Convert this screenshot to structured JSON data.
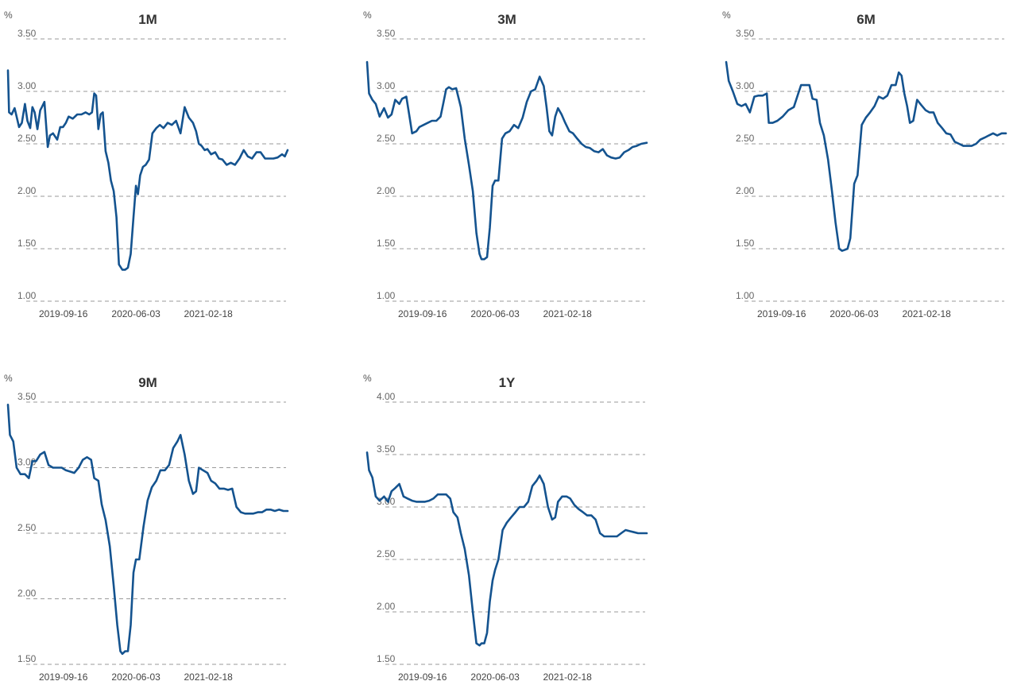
{
  "chart_data": [
    {
      "type": "line",
      "title": "1M",
      "unit": "%",
      "ylim": [
        1.0,
        3.5
      ],
      "yticks": [
        "1.00",
        "1.50",
        "2.00",
        "2.50",
        "3.00",
        "3.50"
      ],
      "xtick_labels": [
        "2019-09-16",
        "2020-06-03",
        "2021-02-18"
      ],
      "grid": "horizontal dashed",
      "color": "#14538f",
      "series": [
        {
          "x": [
            "2019-03-01",
            "2019-03-05",
            "2019-03-14",
            "2019-03-25",
            "2019-04-10",
            "2019-04-20",
            "2019-05-01",
            "2019-05-10",
            "2019-05-20",
            "2019-05-28",
            "2019-06-05",
            "2019-06-15",
            "2019-06-25",
            "2019-07-01",
            "2019-07-10",
            "2019-07-22",
            "2019-07-30",
            "2019-08-10",
            "2019-08-25",
            "2019-09-05",
            "2019-09-15",
            "2019-09-25",
            "2019-10-05",
            "2019-10-20",
            "2019-11-05",
            "2019-11-20",
            "2019-12-05",
            "2019-12-18",
            "2019-12-28",
            "2020-01-05",
            "2020-01-12",
            "2020-01-20",
            "2020-01-28",
            "2020-02-05",
            "2020-02-15",
            "2020-02-25",
            "2020-03-05",
            "2020-03-15",
            "2020-03-25",
            "2020-04-03",
            "2020-04-15",
            "2020-04-25",
            "2020-05-05",
            "2020-05-15",
            "2020-05-25",
            "2020-06-03",
            "2020-06-10",
            "2020-06-18",
            "2020-06-28",
            "2020-07-08",
            "2020-07-20",
            "2020-08-01",
            "2020-08-15",
            "2020-08-28",
            "2020-09-10",
            "2020-09-25",
            "2020-10-10",
            "2020-10-25",
            "2020-11-10",
            "2020-11-25",
            "2020-12-10",
            "2020-12-25",
            "2021-01-05",
            "2021-01-15",
            "2021-01-25",
            "2021-02-05",
            "2021-02-15",
            "2021-02-28",
            "2021-03-15",
            "2021-03-28",
            "2021-04-10",
            "2021-04-25",
            "2021-05-10",
            "2021-05-25",
            "2021-06-10",
            "2021-06-25",
            "2021-07-10",
            "2021-07-25",
            "2021-08-10",
            "2021-08-25",
            "2021-09-10",
            "2021-09-25",
            "2021-10-10",
            "2021-10-25",
            "2021-11-10",
            "2021-11-20",
            "2021-11-30"
          ],
          "values": [
            3.2,
            2.8,
            2.78,
            2.84,
            2.66,
            2.7,
            2.88,
            2.72,
            2.65,
            2.85,
            2.8,
            2.64,
            2.82,
            2.85,
            2.9,
            2.47,
            2.58,
            2.6,
            2.54,
            2.66,
            2.66,
            2.7,
            2.76,
            2.74,
            2.78,
            2.78,
            2.8,
            2.78,
            2.8,
            2.98,
            2.96,
            2.64,
            2.78,
            2.8,
            2.43,
            2.32,
            2.15,
            2.05,
            1.8,
            1.35,
            1.3,
            1.3,
            1.32,
            1.45,
            1.8,
            2.1,
            2.02,
            2.2,
            2.28,
            2.3,
            2.35,
            2.6,
            2.65,
            2.68,
            2.65,
            2.7,
            2.68,
            2.72,
            2.6,
            2.85,
            2.75,
            2.7,
            2.62,
            2.5,
            2.48,
            2.44,
            2.45,
            2.4,
            2.42,
            2.36,
            2.35,
            2.3,
            2.32,
            2.3,
            2.36,
            2.44,
            2.38,
            2.36,
            2.42,
            2.42,
            2.36,
            2.36,
            2.36,
            2.37,
            2.4,
            2.38,
            2.44
          ]
        }
      ]
    },
    {
      "type": "line",
      "title": "3M",
      "unit": "%",
      "ylim": [
        1.0,
        3.5
      ],
      "yticks": [
        "1.00",
        "1.50",
        "2.00",
        "2.50",
        "3.00",
        "3.50"
      ],
      "xtick_labels": [
        "2019-09-16",
        "2020-06-03",
        "2021-02-18"
      ],
      "grid": "horizontal dashed",
      "color": "#14538f",
      "series": [
        {
          "x": [
            "2019-03-01",
            "2019-03-08",
            "2019-03-20",
            "2019-04-01",
            "2019-04-15",
            "2019-05-01",
            "2019-05-15",
            "2019-05-28",
            "2019-06-10",
            "2019-06-25",
            "2019-07-05",
            "2019-07-20",
            "2019-08-01",
            "2019-08-10",
            "2019-08-25",
            "2019-09-05",
            "2019-09-20",
            "2019-10-05",
            "2019-10-20",
            "2019-11-05",
            "2019-11-20",
            "2019-12-01",
            "2019-12-10",
            "2019-12-20",
            "2020-01-01",
            "2020-01-15",
            "2020-02-01",
            "2020-02-15",
            "2020-03-01",
            "2020-03-15",
            "2020-03-28",
            "2020-04-08",
            "2020-04-15",
            "2020-04-25",
            "2020-05-05",
            "2020-05-15",
            "2020-05-25",
            "2020-06-03",
            "2020-06-15",
            "2020-06-28",
            "2020-07-10",
            "2020-07-25",
            "2020-08-10",
            "2020-08-25",
            "2020-09-10",
            "2020-09-25",
            "2020-10-10",
            "2020-10-25",
            "2020-11-10",
            "2020-11-25",
            "2020-12-05",
            "2020-12-15",
            "2020-12-25",
            "2021-01-05",
            "2021-01-15",
            "2021-01-28",
            "2021-02-10",
            "2021-02-25",
            "2021-03-10",
            "2021-03-25",
            "2021-04-10",
            "2021-04-25",
            "2021-05-10",
            "2021-05-25",
            "2021-06-10",
            "2021-06-25",
            "2021-07-10",
            "2021-07-25",
            "2021-08-10",
            "2021-08-25",
            "2021-09-10",
            "2021-09-25",
            "2021-10-10",
            "2021-10-25",
            "2021-11-10",
            "2021-11-30"
          ],
          "values": [
            3.28,
            2.98,
            2.92,
            2.88,
            2.76,
            2.84,
            2.75,
            2.78,
            2.92,
            2.88,
            2.93,
            2.95,
            2.75,
            2.6,
            2.62,
            2.66,
            2.68,
            2.7,
            2.72,
            2.72,
            2.76,
            2.9,
            3.02,
            3.04,
            3.02,
            3.03,
            2.85,
            2.55,
            2.3,
            2.05,
            1.65,
            1.45,
            1.4,
            1.4,
            1.42,
            1.7,
            2.1,
            2.15,
            2.15,
            2.55,
            2.6,
            2.62,
            2.68,
            2.65,
            2.75,
            2.9,
            3.0,
            3.02,
            3.14,
            3.05,
            2.85,
            2.62,
            2.58,
            2.76,
            2.84,
            2.78,
            2.7,
            2.62,
            2.6,
            2.55,
            2.5,
            2.47,
            2.46,
            2.43,
            2.42,
            2.45,
            2.39,
            2.37,
            2.36,
            2.37,
            2.42,
            2.44,
            2.47,
            2.48,
            2.5,
            2.51
          ]
        }
      ]
    },
    {
      "type": "line",
      "title": "6M",
      "unit": "%",
      "ylim": [
        1.0,
        3.5
      ],
      "yticks": [
        "1.00",
        "1.50",
        "2.00",
        "2.50",
        "3.00",
        "3.50"
      ],
      "xtick_labels": [
        "2019-09-16",
        "2020-06-03",
        "2021-02-18"
      ],
      "grid": "horizontal dashed",
      "color": "#14538f",
      "series": [
        {
          "x": [
            "2019-03-01",
            "2019-03-10",
            "2019-03-25",
            "2019-04-10",
            "2019-04-25",
            "2019-05-10",
            "2019-05-25",
            "2019-06-10",
            "2019-06-25",
            "2019-07-10",
            "2019-07-25",
            "2019-08-01",
            "2019-08-15",
            "2019-09-01",
            "2019-09-20",
            "2019-10-10",
            "2019-10-30",
            "2019-11-15",
            "2019-11-25",
            "2019-12-10",
            "2019-12-25",
            "2020-01-05",
            "2020-01-20",
            "2020-02-01",
            "2020-02-15",
            "2020-03-01",
            "2020-03-15",
            "2020-03-28",
            "2020-04-10",
            "2020-04-20",
            "2020-05-01",
            "2020-05-10",
            "2020-05-20",
            "2020-06-03",
            "2020-06-15",
            "2020-06-30",
            "2020-07-15",
            "2020-07-30",
            "2020-08-15",
            "2020-08-30",
            "2020-09-15",
            "2020-09-30",
            "2020-10-15",
            "2020-10-30",
            "2020-11-10",
            "2020-11-20",
            "2020-11-30",
            "2020-12-10",
            "2020-12-20",
            "2021-01-01",
            "2021-01-15",
            "2021-01-30",
            "2021-02-15",
            "2021-02-28",
            "2021-03-15",
            "2021-03-30",
            "2021-04-15",
            "2021-04-30",
            "2021-05-15",
            "2021-05-30",
            "2021-06-15",
            "2021-06-30",
            "2021-07-15",
            "2021-07-30",
            "2021-08-15",
            "2021-08-30",
            "2021-09-15",
            "2021-09-30",
            "2021-10-15",
            "2021-10-30",
            "2021-11-15",
            "2021-11-30"
          ],
          "values": [
            3.28,
            3.1,
            3.0,
            2.88,
            2.86,
            2.88,
            2.8,
            2.95,
            2.96,
            2.96,
            2.98,
            2.7,
            2.7,
            2.72,
            2.76,
            2.82,
            2.85,
            2.98,
            3.06,
            3.06,
            3.06,
            2.93,
            2.92,
            2.7,
            2.58,
            2.35,
            2.05,
            1.75,
            1.5,
            1.48,
            1.49,
            1.5,
            1.6,
            2.12,
            2.2,
            2.68,
            2.75,
            2.8,
            2.86,
            2.95,
            2.93,
            2.96,
            3.06,
            3.06,
            3.18,
            3.15,
            2.98,
            2.86,
            2.7,
            2.72,
            2.92,
            2.87,
            2.82,
            2.8,
            2.8,
            2.7,
            2.65,
            2.6,
            2.59,
            2.52,
            2.5,
            2.48,
            2.48,
            2.48,
            2.5,
            2.54,
            2.56,
            2.58,
            2.6,
            2.58,
            2.6,
            2.6
          ]
        }
      ]
    },
    {
      "type": "line",
      "title": "9M",
      "unit": "%",
      "ylim": [
        1.5,
        3.5
      ],
      "yticks": [
        "1.50",
        "2.00",
        "2.50",
        "3.00",
        "3.50"
      ],
      "xtick_labels": [
        "2019-09-16",
        "2020-06-03",
        "2021-02-18"
      ],
      "grid": "horizontal dashed",
      "color": "#14538f",
      "series": [
        {
          "x": [
            "2019-03-01",
            "2019-03-08",
            "2019-03-20",
            "2019-04-01",
            "2019-04-15",
            "2019-05-01",
            "2019-05-15",
            "2019-05-28",
            "2019-06-10",
            "2019-06-25",
            "2019-07-10",
            "2019-07-25",
            "2019-08-10",
            "2019-08-25",
            "2019-09-10",
            "2019-09-25",
            "2019-10-10",
            "2019-10-25",
            "2019-11-10",
            "2019-11-25",
            "2019-12-10",
            "2019-12-25",
            "2020-01-05",
            "2020-01-20",
            "2020-02-01",
            "2020-02-15",
            "2020-03-01",
            "2020-03-15",
            "2020-03-28",
            "2020-04-08",
            "2020-04-15",
            "2020-04-25",
            "2020-05-05",
            "2020-05-15",
            "2020-05-25",
            "2020-06-03",
            "2020-06-15",
            "2020-06-30",
            "2020-07-15",
            "2020-07-30",
            "2020-08-15",
            "2020-08-30",
            "2020-09-15",
            "2020-09-30",
            "2020-10-15",
            "2020-10-30",
            "2020-11-10",
            "2020-11-25",
            "2020-12-10",
            "2020-12-25",
            "2021-01-05",
            "2021-01-15",
            "2021-01-30",
            "2021-02-15",
            "2021-02-28",
            "2021-03-15",
            "2021-03-30",
            "2021-04-15",
            "2021-04-30",
            "2021-05-15",
            "2021-05-30",
            "2021-06-15",
            "2021-06-30",
            "2021-07-15",
            "2021-07-30",
            "2021-08-15",
            "2021-08-30",
            "2021-09-15",
            "2021-09-30",
            "2021-10-15",
            "2021-10-30",
            "2021-11-15",
            "2021-11-30"
          ],
          "values": [
            3.48,
            3.25,
            3.2,
            3.0,
            2.95,
            2.95,
            2.92,
            3.05,
            3.05,
            3.1,
            3.12,
            3.02,
            3.0,
            3.0,
            3.0,
            2.98,
            2.97,
            2.96,
            3.0,
            3.06,
            3.08,
            3.06,
            2.92,
            2.9,
            2.72,
            2.6,
            2.4,
            2.1,
            1.8,
            1.6,
            1.58,
            1.6,
            1.6,
            1.8,
            2.2,
            2.3,
            2.3,
            2.55,
            2.75,
            2.85,
            2.9,
            2.98,
            2.98,
            3.02,
            3.15,
            3.2,
            3.25,
            3.1,
            2.9,
            2.8,
            2.82,
            3.0,
            2.98,
            2.96,
            2.9,
            2.88,
            2.84,
            2.84,
            2.83,
            2.84,
            2.7,
            2.66,
            2.65,
            2.65,
            2.65,
            2.66,
            2.66,
            2.68,
            2.68,
            2.67,
            2.68,
            2.67,
            2.67
          ]
        }
      ]
    },
    {
      "type": "line",
      "title": "1Y",
      "unit": "%",
      "ylim": [
        1.5,
        4.0
      ],
      "yticks": [
        "1.50",
        "2.00",
        "2.50",
        "3.00",
        "3.50",
        "4.00"
      ],
      "xtick_labels": [
        "2019-09-16",
        "2020-06-03",
        "2021-02-18"
      ],
      "grid": "horizontal dashed",
      "color": "#14538f",
      "series": [
        {
          "x": [
            "2019-03-01",
            "2019-03-08",
            "2019-03-20",
            "2019-04-01",
            "2019-04-15",
            "2019-05-01",
            "2019-05-15",
            "2019-05-28",
            "2019-06-10",
            "2019-06-25",
            "2019-07-10",
            "2019-07-25",
            "2019-08-10",
            "2019-08-25",
            "2019-09-10",
            "2019-09-25",
            "2019-10-10",
            "2019-10-25",
            "2019-11-10",
            "2019-11-25",
            "2019-12-10",
            "2019-12-25",
            "2020-01-05",
            "2020-01-20",
            "2020-02-01",
            "2020-02-15",
            "2020-03-01",
            "2020-03-15",
            "2020-03-28",
            "2020-04-08",
            "2020-04-15",
            "2020-04-25",
            "2020-05-05",
            "2020-05-15",
            "2020-05-25",
            "2020-06-03",
            "2020-06-15",
            "2020-06-30",
            "2020-07-15",
            "2020-07-30",
            "2020-08-15",
            "2020-08-30",
            "2020-09-15",
            "2020-09-30",
            "2020-10-15",
            "2020-10-30",
            "2020-11-10",
            "2020-11-25",
            "2020-12-10",
            "2020-12-25",
            "2021-01-05",
            "2021-01-15",
            "2021-01-30",
            "2021-02-15",
            "2021-02-28",
            "2021-03-15",
            "2021-03-30",
            "2021-04-15",
            "2021-04-30",
            "2021-05-15",
            "2021-05-30",
            "2021-06-15",
            "2021-06-30",
            "2021-07-15",
            "2021-07-30",
            "2021-08-15",
            "2021-08-30",
            "2021-09-15",
            "2021-09-30",
            "2021-10-15",
            "2021-10-30",
            "2021-11-15",
            "2021-11-30"
          ],
          "values": [
            3.52,
            3.35,
            3.28,
            3.1,
            3.06,
            3.1,
            3.05,
            3.15,
            3.18,
            3.22,
            3.1,
            3.08,
            3.06,
            3.05,
            3.05,
            3.05,
            3.06,
            3.08,
            3.12,
            3.12,
            3.12,
            3.08,
            2.95,
            2.9,
            2.75,
            2.6,
            2.35,
            2.0,
            1.7,
            1.68,
            1.7,
            1.7,
            1.8,
            2.1,
            2.3,
            2.4,
            2.5,
            2.78,
            2.85,
            2.9,
            2.95,
            3.0,
            3.0,
            3.05,
            3.2,
            3.25,
            3.3,
            3.22,
            3.0,
            2.88,
            2.9,
            3.05,
            3.1,
            3.1,
            3.08,
            3.02,
            2.98,
            2.95,
            2.92,
            2.92,
            2.88,
            2.75,
            2.72,
            2.72,
            2.72,
            2.72,
            2.75,
            2.78,
            2.77,
            2.76,
            2.75,
            2.75,
            2.75
          ]
        }
      ]
    }
  ]
}
